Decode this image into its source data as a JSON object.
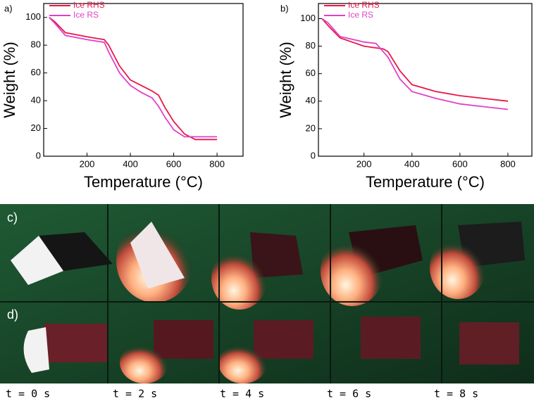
{
  "chart_data": [
    {
      "type": "line",
      "panel_label": "a)",
      "xlabel": "Temperature (°C)",
      "ylabel": "Weight (%)",
      "xlim": [
        0,
        920
      ],
      "ylim": [
        0,
        110
      ],
      "xticks": [
        200,
        400,
        600,
        800
      ],
      "yticks": [
        0,
        20,
        40,
        60,
        80,
        100
      ],
      "series": [
        {
          "name": "Ice RHS",
          "color": "#e8174a",
          "x": [
            25,
            50,
            100,
            200,
            280,
            300,
            350,
            400,
            450,
            500,
            530,
            560,
            600,
            650,
            700,
            800
          ],
          "values": [
            100,
            97,
            89,
            86,
            84,
            80,
            65,
            55,
            51,
            47,
            44,
            35,
            25,
            16,
            12,
            12
          ]
        },
        {
          "name": "Ice RS",
          "color": "#e040c8",
          "x": [
            25,
            50,
            100,
            200,
            280,
            300,
            350,
            400,
            450,
            500,
            530,
            560,
            600,
            650,
            700,
            800
          ],
          "values": [
            100,
            96,
            87,
            84,
            82,
            75,
            60,
            51,
            46,
            42,
            36,
            28,
            19,
            14,
            14,
            14
          ]
        }
      ]
    },
    {
      "type": "line",
      "panel_label": "b)",
      "xlabel": "Temperature (°C)",
      "ylabel": "Weight (%)",
      "xlim": [
        10,
        900
      ],
      "ylim": [
        0,
        111
      ],
      "xticks": [
        200,
        400,
        600,
        800
      ],
      "yticks": [
        0,
        20,
        40,
        60,
        80,
        100
      ],
      "series": [
        {
          "name": "Ice RHS",
          "color": "#e8174a",
          "x": [
            25,
            50,
            100,
            200,
            280,
            300,
            350,
            400,
            500,
            600,
            700,
            800
          ],
          "values": [
            100,
            95,
            86,
            80,
            78,
            76,
            62,
            52,
            47,
            44,
            42,
            40
          ]
        },
        {
          "name": "Ice RS",
          "color": "#e040c8",
          "x": [
            25,
            50,
            100,
            200,
            250,
            300,
            350,
            400,
            500,
            600,
            700,
            800
          ],
          "values": [
            100,
            97,
            87,
            83,
            82,
            72,
            56,
            47,
            42,
            38,
            36,
            34
          ]
        }
      ]
    }
  ],
  "photo_panels": {
    "rows": [
      {
        "label": "c)"
      },
      {
        "label": "d)"
      }
    ],
    "times": [
      "t = 0 s",
      "t = 2 s",
      "t = 4 s",
      "t = 6 s",
      "t = 8 s"
    ]
  }
}
